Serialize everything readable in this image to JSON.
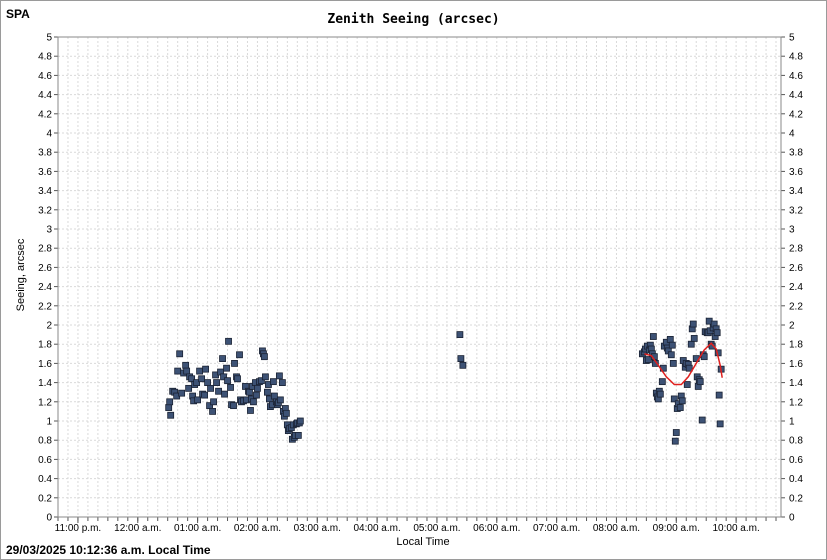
{
  "site_label": "SPA",
  "footer_timestamp": "29/03/2025 10:12:36 a.m. Local Time",
  "colors": {
    "point_fill": "#3d5275",
    "point_stroke": "#1a2233",
    "trend": "#e0201e",
    "grid": "#d9d9d9"
  },
  "chart_data": {
    "type": "scatter",
    "title": "Zenith Seeing (arcsec)",
    "xlabel": "Local Time",
    "ylabel": "Seeing, arcsec",
    "ylim": [
      0,
      5
    ],
    "yticks": [
      "0",
      "0.2",
      "0.4",
      "0.6",
      "0.8",
      "1",
      "1.2",
      "1.4",
      "1.6",
      "1.8",
      "2",
      "2.2",
      "2.4",
      "2.6",
      "2.8",
      "3",
      "3.2",
      "3.4",
      "3.6",
      "3.8",
      "4",
      "4.2",
      "4.4",
      "4.6",
      "4.8",
      "5"
    ],
    "xlim": [
      "22:40",
      "10:45"
    ],
    "xticks": [
      {
        "t": "23:00",
        "label": "11:00 p.m."
      },
      {
        "t": "00:00",
        "label": "12:00 a.m."
      },
      {
        "t": "01:00",
        "label": "01:00 a.m."
      },
      {
        "t": "02:00",
        "label": "02:00 a.m."
      },
      {
        "t": "03:00",
        "label": "03:00 a.m."
      },
      {
        "t": "04:00",
        "label": "04:00 a.m."
      },
      {
        "t": "05:00",
        "label": "05:00 a.m."
      },
      {
        "t": "06:00",
        "label": "06:00 a.m."
      },
      {
        "t": "07:00",
        "label": "07:00 a.m."
      },
      {
        "t": "08:00",
        "label": "08:00 a.m."
      },
      {
        "t": "09:00",
        "label": "09:00 a.m."
      },
      {
        "t": "10:00",
        "label": "10:00 a.m."
      }
    ],
    "grid": true,
    "series": [
      {
        "points": [
          [
            "00:31",
            1.14
          ],
          [
            "00:32",
            1.2
          ],
          [
            "00:33",
            1.06
          ],
          [
            "00:35",
            1.31
          ],
          [
            "00:37",
            1.3
          ],
          [
            "00:39",
            1.26
          ],
          [
            "00:40",
            1.52
          ],
          [
            "00:42",
            1.7
          ],
          [
            "00:44",
            1.29
          ],
          [
            "00:46",
            1.5
          ],
          [
            "00:48",
            1.58
          ],
          [
            "00:49",
            1.52
          ],
          [
            "00:51",
            1.34
          ],
          [
            "00:52",
            1.46
          ],
          [
            "00:54",
            1.44
          ],
          [
            "00:55",
            1.26
          ],
          [
            "00:56",
            1.21
          ],
          [
            "00:57",
            1.38
          ],
          [
            "00:59",
            1.4
          ],
          [
            "01:00",
            1.22
          ],
          [
            "01:02",
            1.52
          ],
          [
            "01:04",
            1.44
          ],
          [
            "01:05",
            1.28
          ],
          [
            "01:07",
            1.27
          ],
          [
            "01:08",
            1.54
          ],
          [
            "01:10",
            1.4
          ],
          [
            "01:12",
            1.16
          ],
          [
            "01:13",
            1.34
          ],
          [
            "01:15",
            1.1
          ],
          [
            "01:16",
            1.2
          ],
          [
            "01:18",
            1.48
          ],
          [
            "01:19",
            1.4
          ],
          [
            "01:21",
            1.31
          ],
          [
            "01:23",
            1.51
          ],
          [
            "01:25",
            1.65
          ],
          [
            "01:26",
            1.46
          ],
          [
            "01:27",
            1.28
          ],
          [
            "01:29",
            1.55
          ],
          [
            "01:30",
            1.42
          ],
          [
            "01:31",
            1.83
          ],
          [
            "01:33",
            1.35
          ],
          [
            "01:34",
            1.17
          ],
          [
            "01:36",
            1.16
          ],
          [
            "01:37",
            1.6
          ],
          [
            "01:39",
            1.46
          ],
          [
            "01:40",
            1.44
          ],
          [
            "01:42",
            1.69
          ],
          [
            "01:43",
            1.22
          ],
          [
            "01:44",
            1.2
          ],
          [
            "01:46",
            1.21
          ],
          [
            "01:48",
            1.36
          ],
          [
            "01:49",
            1.22
          ],
          [
            "01:51",
            1.31
          ],
          [
            "01:52",
            1.3
          ],
          [
            "01:53",
            1.11
          ],
          [
            "01:54",
            1.23
          ],
          [
            "01:55",
            1.36
          ],
          [
            "01:56",
            1.2
          ],
          [
            "01:58",
            1.4
          ],
          [
            "01:59",
            1.27
          ],
          [
            "02:00",
            1.34
          ],
          [
            "02:02",
            1.41
          ],
          [
            "02:04",
            1.42
          ],
          [
            "02:05",
            1.73
          ],
          [
            "02:06",
            1.7
          ],
          [
            "02:07",
            1.67
          ],
          [
            "02:08",
            1.46
          ],
          [
            "02:10",
            1.3
          ],
          [
            "02:11",
            1.38
          ],
          [
            "02:12",
            1.23
          ],
          [
            "02:13",
            1.15
          ],
          [
            "02:15",
            1.17
          ],
          [
            "02:16",
            1.41
          ],
          [
            "02:17",
            1.26
          ],
          [
            "02:19",
            1.2
          ],
          [
            "02:20",
            1.17
          ],
          [
            "02:21",
            1.19
          ],
          [
            "02:22",
            1.47
          ],
          [
            "02:23",
            1.22
          ],
          [
            "02:25",
            1.4
          ],
          [
            "02:26",
            1.1
          ],
          [
            "02:27",
            1.05
          ],
          [
            "02:28",
            1.13
          ],
          [
            "02:29",
            1.08
          ],
          [
            "02:30",
            0.96
          ],
          [
            "02:31",
            0.9
          ],
          [
            "02:32",
            0.92
          ],
          [
            "02:34",
            0.93
          ],
          [
            "02:35",
            0.81
          ],
          [
            "02:36",
            0.96
          ],
          [
            "02:37",
            0.83
          ],
          [
            "02:38",
            0.85
          ],
          [
            "02:39",
            0.97
          ],
          [
            "02:40",
            0.98
          ],
          [
            "02:41",
            0.85
          ],
          [
            "02:42",
            0.98
          ],
          [
            "02:43",
            1.0
          ],
          [
            "05:23",
            1.9
          ],
          [
            "05:24",
            1.65
          ],
          [
            "05:26",
            1.58
          ],
          [
            "08:26",
            1.7
          ],
          [
            "08:28",
            1.72
          ],
          [
            "08:29",
            1.75
          ],
          [
            "08:30",
            1.63
          ],
          [
            "08:31",
            1.78
          ],
          [
            "08:32",
            1.64
          ],
          [
            "08:33",
            1.74
          ],
          [
            "08:34",
            1.79
          ],
          [
            "08:35",
            1.75
          ],
          [
            "08:36",
            1.7
          ],
          [
            "08:37",
            1.88
          ],
          [
            "08:38",
            1.67
          ],
          [
            "08:39",
            1.6
          ],
          [
            "08:40",
            1.29
          ],
          [
            "08:41",
            1.25
          ],
          [
            "08:42",
            1.23
          ],
          [
            "08:43",
            1.31
          ],
          [
            "08:44",
            1.28
          ],
          [
            "08:46",
            1.41
          ],
          [
            "08:47",
            1.55
          ],
          [
            "08:48",
            1.78
          ],
          [
            "08:50",
            1.82
          ],
          [
            "08:51",
            1.76
          ],
          [
            "08:52",
            1.73
          ],
          [
            "08:54",
            1.85
          ],
          [
            "08:55",
            1.69
          ],
          [
            "08:56",
            1.79
          ],
          [
            "08:57",
            1.6
          ],
          [
            "08:58",
            1.23
          ],
          [
            "08:59",
            0.79
          ],
          [
            "09:00",
            0.88
          ],
          [
            "09:01",
            1.13
          ],
          [
            "09:02",
            1.18
          ],
          [
            "09:04",
            1.14
          ],
          [
            "09:05",
            1.26
          ],
          [
            "09:06",
            1.21
          ],
          [
            "09:07",
            1.63
          ],
          [
            "09:09",
            1.56
          ],
          [
            "09:10",
            1.6
          ],
          [
            "09:11",
            1.38
          ],
          [
            "09:12",
            1.59
          ],
          [
            "09:13",
            1.55
          ],
          [
            "09:15",
            1.8
          ],
          [
            "09:16",
            1.96
          ],
          [
            "09:17",
            2.01
          ],
          [
            "09:18",
            1.86
          ],
          [
            "09:20",
            1.65
          ],
          [
            "09:21",
            1.46
          ],
          [
            "09:22",
            1.36
          ],
          [
            "09:23",
            1.43
          ],
          [
            "09:24",
            1.41
          ],
          [
            "09:26",
            1.01
          ],
          [
            "09:27",
            1.69
          ],
          [
            "09:28",
            1.67
          ],
          [
            "09:29",
            1.93
          ],
          [
            "09:31",
            1.92
          ],
          [
            "09:32",
            1.92
          ],
          [
            "09:33",
            2.04
          ],
          [
            "09:34",
            1.94
          ],
          [
            "09:35",
            1.8
          ],
          [
            "09:36",
            1.78
          ],
          [
            "09:37",
            1.97
          ],
          [
            "09:38",
            2.01
          ],
          [
            "09:39",
            1.88
          ],
          [
            "09:40",
            1.96
          ],
          [
            "09:41",
            1.92
          ],
          [
            "09:42",
            1.71
          ],
          [
            "09:43",
            1.27
          ],
          [
            "09:44",
            0.97
          ],
          [
            "09:45",
            1.54
          ]
        ]
      }
    ],
    "trend_line": [
      [
        "08:28",
        1.7
      ],
      [
        "08:35",
        1.68
      ],
      [
        "08:42",
        1.58
      ],
      [
        "08:50",
        1.46
      ],
      [
        "08:58",
        1.38
      ],
      [
        "09:05",
        1.38
      ],
      [
        "09:12",
        1.46
      ],
      [
        "09:20",
        1.6
      ],
      [
        "09:28",
        1.74
      ],
      [
        "09:35",
        1.81
      ],
      [
        "09:40",
        1.75
      ],
      [
        "09:44",
        1.58
      ],
      [
        "09:46",
        1.45
      ]
    ]
  }
}
